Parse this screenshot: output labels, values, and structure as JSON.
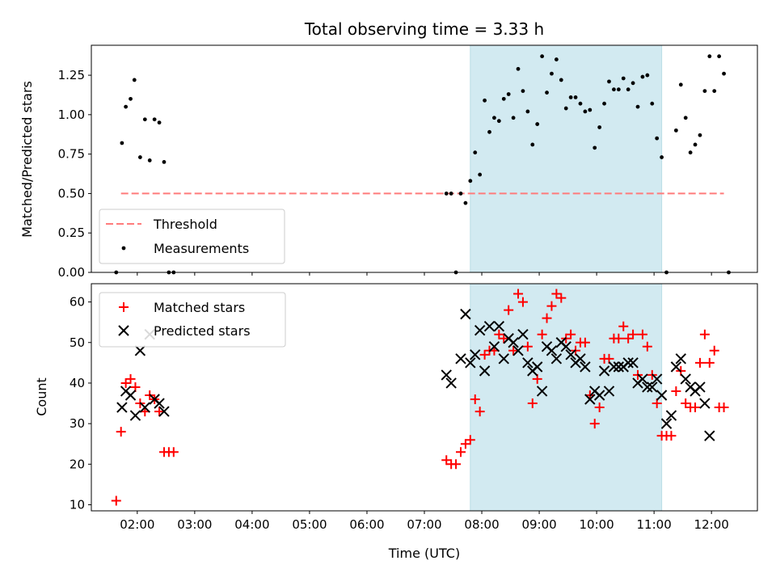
{
  "chart_data": {
    "type": "scatter",
    "title": "Total observing time = 3.33 h",
    "xlabel": "Time (UTC)",
    "xlim": [
      "01:12",
      "12:48"
    ],
    "xtick_labels": [
      "02:00",
      "03:00",
      "04:00",
      "05:00",
      "06:00",
      "07:00",
      "08:00",
      "09:00",
      "10:00",
      "11:00",
      "12:00"
    ],
    "shared_x_axis": true,
    "highlight_region": {
      "start": "07:48",
      "end": "11:08",
      "color": "#d2eaf1"
    },
    "panels": [
      {
        "ylabel": "Matched/Predicted stars",
        "ylim": [
          0,
          1.44
        ],
        "ytick_labels": [
          "0.00",
          "0.25",
          "0.50",
          "0.75",
          "1.00",
          "1.25"
        ],
        "legend_position": "lower-left",
        "threshold": {
          "name": "Threshold",
          "value": 0.5,
          "x_range": [
            "01:43",
            "12:13"
          ],
          "color": "#ff7b7b",
          "style": "dashed"
        },
        "series": [
          {
            "name": "Measurements",
            "marker": "dot",
            "color": "#000000",
            "points": [
              [
                "01:38",
                0.0
              ],
              [
                "01:44",
                0.82
              ],
              [
                "01:48",
                1.05
              ],
              [
                "01:53",
                1.1
              ],
              [
                "01:57",
                1.22
              ],
              [
                "02:03",
                0.73
              ],
              [
                "02:08",
                0.97
              ],
              [
                "02:13",
                0.71
              ],
              [
                "02:18",
                0.97
              ],
              [
                "02:23",
                0.95
              ],
              [
                "02:28",
                0.7
              ],
              [
                "02:33",
                0.0
              ],
              [
                "02:38",
                0.0
              ],
              [
                "07:23",
                0.5
              ],
              [
                "07:28",
                0.5
              ],
              [
                "07:33",
                0.0
              ],
              [
                "07:38",
                0.5
              ],
              [
                "07:43",
                0.44
              ],
              [
                "07:48",
                0.58
              ],
              [
                "07:53",
                0.76
              ],
              [
                "07:58",
                0.62
              ],
              [
                "08:03",
                1.09
              ],
              [
                "08:08",
                0.89
              ],
              [
                "08:13",
                0.98
              ],
              [
                "08:18",
                0.96
              ],
              [
                "08:23",
                1.1
              ],
              [
                "08:28",
                1.13
              ],
              [
                "08:33",
                0.98
              ],
              [
                "08:38",
                1.29
              ],
              [
                "08:43",
                1.15
              ],
              [
                "08:48",
                1.02
              ],
              [
                "08:53",
                0.81
              ],
              [
                "08:58",
                0.94
              ],
              [
                "09:03",
                1.37
              ],
              [
                "09:08",
                1.14
              ],
              [
                "09:13",
                1.26
              ],
              [
                "09:18",
                1.35
              ],
              [
                "09:23",
                1.22
              ],
              [
                "09:28",
                1.04
              ],
              [
                "09:33",
                1.11
              ],
              [
                "09:38",
                1.11
              ],
              [
                "09:43",
                1.07
              ],
              [
                "09:48",
                1.02
              ],
              [
                "09:53",
                1.03
              ],
              [
                "09:58",
                0.79
              ],
              [
                "10:03",
                0.92
              ],
              [
                "10:08",
                1.07
              ],
              [
                "10:13",
                1.21
              ],
              [
                "10:18",
                1.16
              ],
              [
                "10:23",
                1.16
              ],
              [
                "10:28",
                1.23
              ],
              [
                "10:33",
                1.16
              ],
              [
                "10:38",
                1.2
              ],
              [
                "10:43",
                1.05
              ],
              [
                "10:48",
                1.24
              ],
              [
                "10:53",
                1.25
              ],
              [
                "10:58",
                1.07
              ],
              [
                "11:03",
                0.85
              ],
              [
                "11:08",
                0.73
              ],
              [
                "11:13",
                0.0
              ],
              [
                "11:23",
                0.9
              ],
              [
                "11:28",
                1.19
              ],
              [
                "11:33",
                0.98
              ],
              [
                "11:38",
                0.76
              ],
              [
                "11:43",
                0.81
              ],
              [
                "11:48",
                0.87
              ],
              [
                "11:53",
                1.15
              ],
              [
                "11:58",
                1.37
              ],
              [
                "12:03",
                1.15
              ],
              [
                "12:08",
                1.37
              ],
              [
                "12:13",
                1.26
              ],
              [
                "12:18",
                0.0
              ]
            ]
          }
        ]
      },
      {
        "ylabel": "Count",
        "ylim": [
          8.5,
          64.5
        ],
        "ytick_labels": [
          "10",
          "20",
          "30",
          "40",
          "50",
          "60"
        ],
        "legend_position": "top-left",
        "series": [
          {
            "name": "Matched stars",
            "marker": "plus",
            "color": "#ff0000",
            "points": [
              [
                "01:38",
                11
              ],
              [
                "01:43",
                28
              ],
              [
                "01:48",
                40
              ],
              [
                "01:53",
                41
              ],
              [
                "01:58",
                39
              ],
              [
                "02:03",
                35
              ],
              [
                "02:08",
                33
              ],
              [
                "02:13",
                37
              ],
              [
                "02:18",
                36
              ],
              [
                "02:23",
                33
              ],
              [
                "02:28",
                23
              ],
              [
                "02:33",
                23
              ],
              [
                "02:38",
                23
              ],
              [
                "07:23",
                21
              ],
              [
                "07:28",
                20
              ],
              [
                "07:33",
                20
              ],
              [
                "07:38",
                23
              ],
              [
                "07:43",
                25
              ],
              [
                "07:48",
                26
              ],
              [
                "07:53",
                36
              ],
              [
                "07:58",
                33
              ],
              [
                "08:03",
                47
              ],
              [
                "08:08",
                48
              ],
              [
                "08:13",
                48
              ],
              [
                "08:18",
                52
              ],
              [
                "08:23",
                51
              ],
              [
                "08:28",
                58
              ],
              [
                "08:33",
                48
              ],
              [
                "08:38",
                62
              ],
              [
                "08:43",
                60
              ],
              [
                "08:48",
                49
              ],
              [
                "08:53",
                35
              ],
              [
                "08:58",
                41
              ],
              [
                "09:03",
                52
              ],
              [
                "09:08",
                56
              ],
              [
                "09:13",
                59
              ],
              [
                "09:18",
                62
              ],
              [
                "09:23",
                61
              ],
              [
                "09:28",
                51
              ],
              [
                "09:33",
                52
              ],
              [
                "09:38",
                48
              ],
              [
                "09:43",
                50
              ],
              [
                "09:48",
                50
              ],
              [
                "09:53",
                37
              ],
              [
                "09:58",
                30
              ],
              [
                "10:03",
                34
              ],
              [
                "10:08",
                46
              ],
              [
                "10:13",
                46
              ],
              [
                "10:18",
                51
              ],
              [
                "10:23",
                51
              ],
              [
                "10:28",
                54
              ],
              [
                "10:33",
                51
              ],
              [
                "10:38",
                52
              ],
              [
                "10:43",
                42
              ],
              [
                "10:48",
                52
              ],
              [
                "10:53",
                49
              ],
              [
                "10:58",
                42
              ],
              [
                "11:03",
                35
              ],
              [
                "11:08",
                27
              ],
              [
                "11:13",
                27
              ],
              [
                "11:18",
                27
              ],
              [
                "11:23",
                38
              ],
              [
                "11:28",
                43
              ],
              [
                "11:33",
                35
              ],
              [
                "11:38",
                34
              ],
              [
                "11:43",
                34
              ],
              [
                "11:48",
                45
              ],
              [
                "11:53",
                52
              ],
              [
                "11:58",
                45
              ],
              [
                "12:03",
                48
              ],
              [
                "12:08",
                34
              ],
              [
                "12:13",
                34
              ]
            ]
          },
          {
            "name": "Predicted stars",
            "marker": "x",
            "color": "#000000",
            "points": [
              [
                "01:44",
                34
              ],
              [
                "01:48",
                38
              ],
              [
                "01:53",
                37
              ],
              [
                "01:58",
                32
              ],
              [
                "02:03",
                48
              ],
              [
                "02:08",
                34
              ],
              [
                "02:13",
                52
              ],
              [
                "02:18",
                36
              ],
              [
                "02:23",
                35
              ],
              [
                "02:28",
                33
              ],
              [
                "07:23",
                42
              ],
              [
                "07:28",
                40
              ],
              [
                "07:38",
                46
              ],
              [
                "07:43",
                57
              ],
              [
                "07:48",
                45
              ],
              [
                "07:53",
                47
              ],
              [
                "07:58",
                53
              ],
              [
                "08:03",
                43
              ],
              [
                "08:08",
                54
              ],
              [
                "08:13",
                49
              ],
              [
                "08:18",
                54
              ],
              [
                "08:23",
                46
              ],
              [
                "08:28",
                51
              ],
              [
                "08:33",
                50
              ],
              [
                "08:38",
                48
              ],
              [
                "08:43",
                52
              ],
              [
                "08:48",
                45
              ],
              [
                "08:53",
                43
              ],
              [
                "08:58",
                44
              ],
              [
                "09:03",
                38
              ],
              [
                "09:08",
                49
              ],
              [
                "09:13",
                48
              ],
              [
                "09:18",
                46
              ],
              [
                "09:23",
                50
              ],
              [
                "09:28",
                49
              ],
              [
                "09:33",
                47
              ],
              [
                "09:38",
                45
              ],
              [
                "09:43",
                46
              ],
              [
                "09:48",
                44
              ],
              [
                "09:53",
                36
              ],
              [
                "09:58",
                38
              ],
              [
                "10:03",
                37
              ],
              [
                "10:08",
                43
              ],
              [
                "10:13",
                38
              ],
              [
                "10:18",
                44
              ],
              [
                "10:23",
                44
              ],
              [
                "10:28",
                44
              ],
              [
                "10:33",
                45
              ],
              [
                "10:38",
                45
              ],
              [
                "10:43",
                40
              ],
              [
                "10:48",
                41
              ],
              [
                "10:53",
                39
              ],
              [
                "10:58",
                39
              ],
              [
                "11:03",
                41
              ],
              [
                "11:08",
                37
              ],
              [
                "11:13",
                30
              ],
              [
                "11:18",
                32
              ],
              [
                "11:23",
                44
              ],
              [
                "11:28",
                46
              ],
              [
                "11:33",
                41
              ],
              [
                "11:38",
                39
              ],
              [
                "11:43",
                38
              ],
              [
                "11:48",
                39
              ],
              [
                "11:53",
                35
              ],
              [
                "11:58",
                27
              ]
            ]
          }
        ]
      }
    ]
  }
}
